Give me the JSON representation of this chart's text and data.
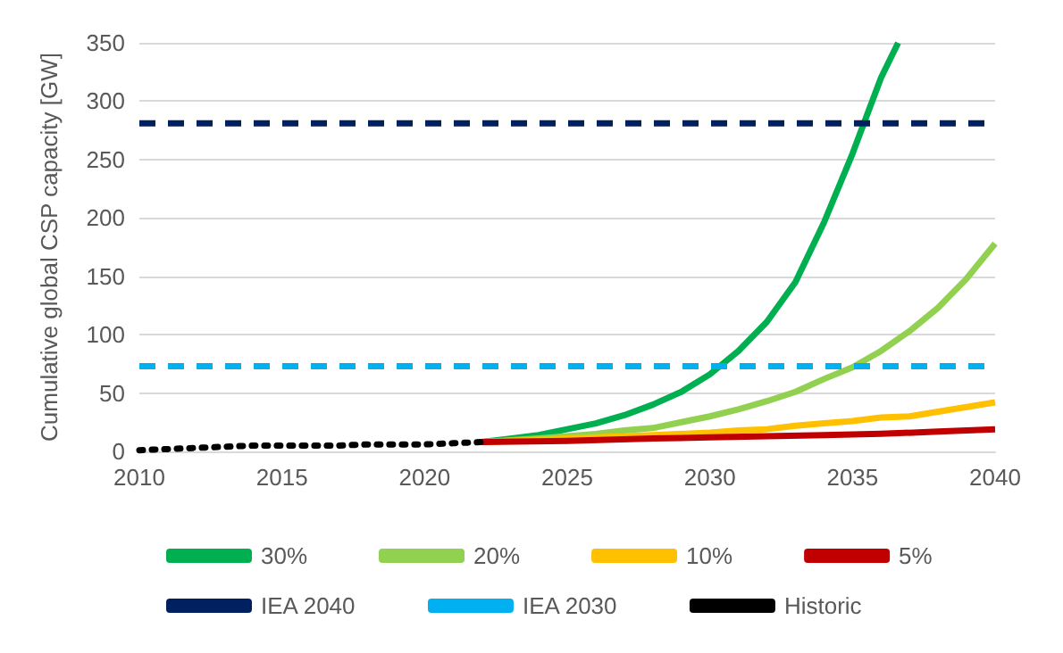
{
  "chart_data": {
    "type": "line",
    "ylabel": "Cumulative global CSP capacity [GW]",
    "xlim": [
      2010,
      2040
    ],
    "xticks": [
      2010,
      2015,
      2020,
      2025,
      2030,
      2035,
      2040
    ],
    "ylim": [
      0,
      350
    ],
    "yticks": [
      0,
      50,
      100,
      150,
      200,
      250,
      300,
      350
    ],
    "grid": "y",
    "legend": "bottom",
    "marker": "none",
    "line_style": "solid",
    "series": [
      {
        "name": "30%",
        "color": "#00b050",
        "x": [
          2022,
          2023,
          2024,
          2025,
          2026,
          2027,
          2028,
          2029,
          2030,
          2031,
          2032,
          2033,
          2034,
          2035,
          2036,
          2036.6
        ],
        "values": [
          8,
          11,
          14,
          19,
          24,
          31,
          40,
          51,
          66,
          86,
          111,
          145,
          196,
          255,
          320,
          350
        ]
      },
      {
        "name": "20%",
        "color": "#92d050",
        "x": [
          2022,
          2024,
          2026,
          2027,
          2028,
          2029,
          2030,
          2031,
          2032,
          2033,
          2034,
          2035,
          2036,
          2037,
          2038,
          2039,
          2040
        ],
        "values": [
          8,
          11,
          15,
          18,
          20,
          25,
          30,
          36,
          43,
          51,
          62,
          72,
          86,
          103,
          123,
          148,
          178
        ]
      },
      {
        "name": "10%",
        "color": "#ffc000",
        "x": [
          2022,
          2025,
          2028,
          2030,
          2031,
          2032,
          2033,
          2034,
          2035,
          2036,
          2037,
          2038,
          2039,
          2040
        ],
        "values": [
          8,
          11,
          14,
          16,
          18,
          19,
          22,
          24,
          26,
          29,
          30,
          34,
          38,
          42
        ]
      },
      {
        "name": "5%",
        "color": "#c00000",
        "x": [
          2022,
          2025,
          2028,
          2030,
          2032,
          2034,
          2036,
          2038,
          2040
        ],
        "values": [
          8,
          9,
          11,
          12,
          13,
          14,
          15,
          17,
          19
        ]
      },
      {
        "name": "IEA 2040",
        "color": "#002060",
        "line_style": "dashed",
        "x": [
          2010,
          2040
        ],
        "values": [
          281,
          281
        ]
      },
      {
        "name": "IEA 2030",
        "color": "#00b0f0",
        "line_style": "dashed",
        "x": [
          2010,
          2040
        ],
        "values": [
          73,
          73
        ]
      },
      {
        "name": "Historic",
        "color": "#000000",
        "line_style": "dotted",
        "x": [
          2010,
          2011,
          2012,
          2013,
          2014,
          2015,
          2016,
          2017,
          2018,
          2019,
          2020,
          2021,
          2022
        ],
        "values": [
          1,
          2,
          3,
          4,
          5,
          5,
          5,
          5,
          6,
          6,
          6,
          7,
          8
        ]
      }
    ]
  }
}
